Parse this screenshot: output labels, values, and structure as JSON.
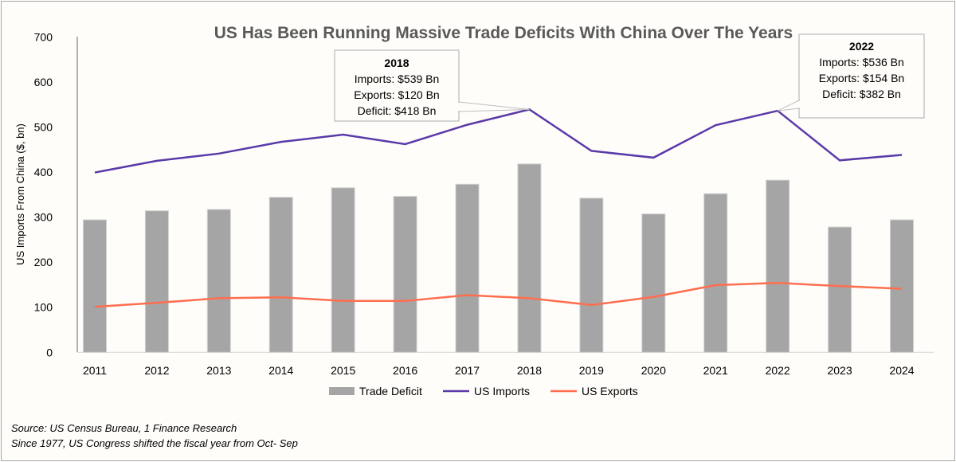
{
  "chart_data": {
    "type": "bar+line",
    "title": "US Has Been Running Massive Trade Deficits With China Over The Years",
    "xlabel": "",
    "ylabel": "US Imports From China ($, bn)",
    "ylim": [
      0,
      700
    ],
    "yticks": [
      0,
      100,
      200,
      300,
      400,
      500,
      600,
      700
    ],
    "grid": false,
    "legend_position": "bottom",
    "categories": [
      "2011",
      "2012",
      "2013",
      "2014",
      "2015",
      "2016",
      "2017",
      "2018",
      "2019",
      "2020",
      "2021",
      "2022",
      "2023",
      "2024"
    ],
    "series": [
      {
        "name": "Trade Deficit",
        "type": "bar",
        "color": "#a5a5a5",
        "values": [
          294,
          314,
          317,
          344,
          365,
          346,
          373,
          418,
          342,
          307,
          352,
          382,
          278,
          294
        ]
      },
      {
        "name": "US Imports",
        "type": "line",
        "color": "#5a3aa8",
        "values": [
          399,
          425,
          441,
          467,
          483,
          462,
          505,
          539,
          447,
          432,
          504,
          536,
          426,
          438
        ]
      },
      {
        "name": "US Exports",
        "type": "line",
        "color": "#ff6e4f",
        "values": [
          101,
          110,
          120,
          122,
          114,
          114,
          127,
          120,
          105,
          123,
          149,
          154,
          147,
          141
        ]
      }
    ],
    "annotations": [
      {
        "year": "2018",
        "lines": [
          "Imports: $539 Bn",
          "Exports: $120 Bn",
          "Deficit: $418 Bn"
        ]
      },
      {
        "year": "2022",
        "lines": [
          "Imports: $536 Bn",
          "Exports: $154 Bn",
          "Deficit: $382 Bn"
        ]
      }
    ]
  },
  "footer": {
    "source": "Source: US Census Bureau, 1 Finance Research",
    "note": "Since 1977, US Congress shifted the fiscal year from Oct- Sep"
  }
}
